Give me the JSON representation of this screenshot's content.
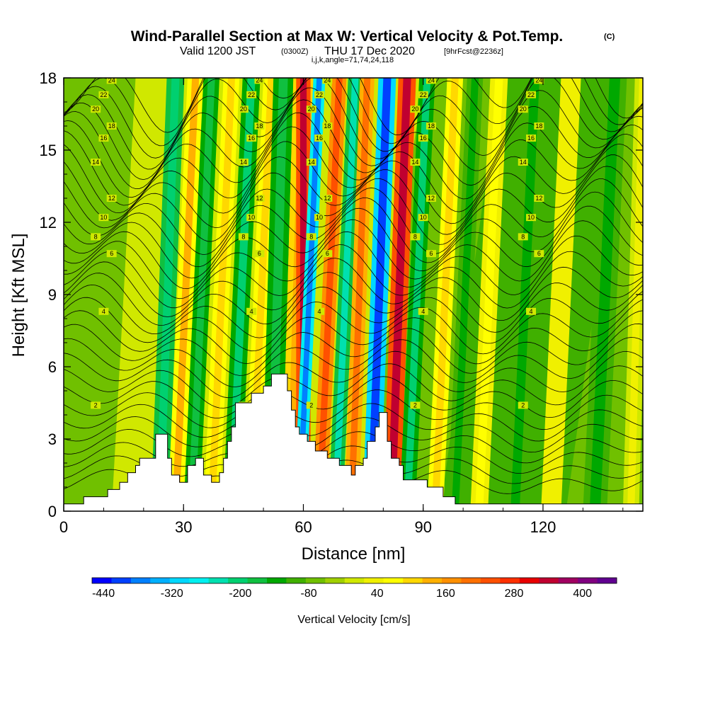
{
  "chart_data": {
    "type": "heatmap",
    "title": "Wind-Parallel Section at Max W: Vertical Velocity & Pot.Temp.",
    "title_unit": "(C)",
    "subtitle_prefix": "Valid 1200 JST",
    "subtitle_zulu": "(0300Z)",
    "subtitle_date": "THU 17 Dec 2020",
    "subtitle_forecast": "[9hrFcst@2236z]",
    "subtitle_line2": "i,j,k,angle=71,74,24,118",
    "xlabel": "Distance [nm]",
    "ylabel": "Height [Kft MSL]",
    "xlim": [
      0,
      145
    ],
    "ylim": [
      0,
      18
    ],
    "x_ticks": [
      "0",
      "30",
      "60",
      "90",
      "120"
    ],
    "x_tick_values": [
      0,
      30,
      60,
      90,
      120
    ],
    "y_ticks": [
      "0",
      "3",
      "6",
      "9",
      "12",
      "15",
      "18"
    ],
    "y_tick_values": [
      0,
      3,
      6,
      9,
      12,
      15,
      18
    ],
    "colorbar": {
      "label": "Vertical Velocity [cm/s]",
      "min": -460,
      "max": 460,
      "step": 40,
      "tick_labels": [
        "-440",
        "-320",
        "-200",
        "-80",
        "40",
        "160",
        "280",
        "400"
      ],
      "tick_values": [
        -440,
        -320,
        -200,
        -80,
        40,
        160,
        280,
        400
      ],
      "colors": [
        "#0000ff",
        "#0040ff",
        "#0080ff",
        "#00b0ff",
        "#00d8ff",
        "#00f0f0",
        "#00e0b0",
        "#00d070",
        "#10c040",
        "#00a800",
        "#40b000",
        "#70c000",
        "#a0d000",
        "#d0e800",
        "#f0f000",
        "#ffff00",
        "#ffd800",
        "#ffb000",
        "#ff9000",
        "#ff7000",
        "#ff5000",
        "#ff3000",
        "#e80000",
        "#c00030",
        "#a00060",
        "#800080",
        "#600090"
      ]
    },
    "terrain_kft": [
      [
        0,
        0.3
      ],
      [
        5,
        0.3
      ],
      [
        5,
        0.6
      ],
      [
        11,
        0.6
      ],
      [
        11,
        0.9
      ],
      [
        14,
        0.9
      ],
      [
        14,
        1.2
      ],
      [
        16,
        1.2
      ],
      [
        16,
        1.6
      ],
      [
        18,
        1.6
      ],
      [
        18,
        1.9
      ],
      [
        19,
        1.9
      ],
      [
        19,
        2.2
      ],
      [
        23,
        2.2
      ],
      [
        23,
        3.2
      ],
      [
        26,
        3.2
      ],
      [
        26,
        2.2
      ],
      [
        27,
        2.2
      ],
      [
        27,
        1.5
      ],
      [
        29,
        1.5
      ],
      [
        29,
        1.2
      ],
      [
        31,
        1.2
      ],
      [
        31,
        1.9
      ],
      [
        33,
        1.9
      ],
      [
        33,
        2.2
      ],
      [
        35,
        2.2
      ],
      [
        35,
        1.5
      ],
      [
        37,
        1.5
      ],
      [
        37,
        1.2
      ],
      [
        39,
        1.2
      ],
      [
        39,
        1.6
      ],
      [
        40,
        1.6
      ],
      [
        40,
        2.2
      ],
      [
        41,
        2.2
      ],
      [
        41,
        2.9
      ],
      [
        42,
        2.9
      ],
      [
        42,
        3.5
      ],
      [
        43,
        3.5
      ],
      [
        43,
        4.5
      ],
      [
        47,
        4.5
      ],
      [
        47,
        4.9
      ],
      [
        50,
        4.9
      ],
      [
        50,
        5.2
      ],
      [
        52,
        5.2
      ],
      [
        52,
        5.7
      ],
      [
        56,
        5.7
      ],
      [
        56,
        5.0
      ],
      [
        57,
        5.0
      ],
      [
        57,
        4.2
      ],
      [
        58,
        4.2
      ],
      [
        58,
        3.5
      ],
      [
        59,
        3.5
      ],
      [
        59,
        3.2
      ],
      [
        61,
        3.2
      ],
      [
        61,
        2.9
      ],
      [
        63,
        2.9
      ],
      [
        63,
        2.5
      ],
      [
        66,
        2.5
      ],
      [
        66,
        2.2
      ],
      [
        69,
        2.2
      ],
      [
        69,
        1.9
      ],
      [
        72,
        1.9
      ],
      [
        72,
        1.5
      ],
      [
        73,
        1.5
      ],
      [
        73,
        1.9
      ],
      [
        75,
        1.9
      ],
      [
        75,
        2.2
      ],
      [
        76,
        2.2
      ],
      [
        76,
        2.9
      ],
      [
        78,
        2.9
      ],
      [
        78,
        3.5
      ],
      [
        79,
        3.5
      ],
      [
        79,
        4.1
      ],
      [
        81,
        4.1
      ],
      [
        81,
        2.9
      ],
      [
        82,
        2.9
      ],
      [
        82,
        2.2
      ],
      [
        84,
        2.2
      ],
      [
        84,
        1.9
      ],
      [
        85,
        1.9
      ],
      [
        85,
        1.3
      ],
      [
        91,
        1.3
      ],
      [
        91,
        1.0
      ],
      [
        95,
        1.0
      ],
      [
        95,
        0.6
      ],
      [
        98,
        0.6
      ],
      [
        98,
        0.3
      ],
      [
        145,
        0.3
      ]
    ],
    "theta_contours": [
      {
        "label": "2",
        "y_kft": 4.4
      },
      {
        "label": "4",
        "y_kft": 8.3
      },
      {
        "label": "6",
        "y_kft": 10.7
      },
      {
        "label": "8",
        "y_kft": 11.4
      },
      {
        "label": "10",
        "y_kft": 12.2
      },
      {
        "label": "12",
        "y_kft": 13.0
      },
      {
        "label": "14",
        "y_kft": 14.5
      },
      {
        "label": "16",
        "y_kft": 15.5
      },
      {
        "label": "18",
        "y_kft": 16.0
      },
      {
        "label": "20",
        "y_kft": 16.7
      },
      {
        "label": "22",
        "y_kft": 17.3
      },
      {
        "label": "24",
        "y_kft": 17.9
      }
    ],
    "grid": false,
    "legend": "colorbar-bottom"
  }
}
